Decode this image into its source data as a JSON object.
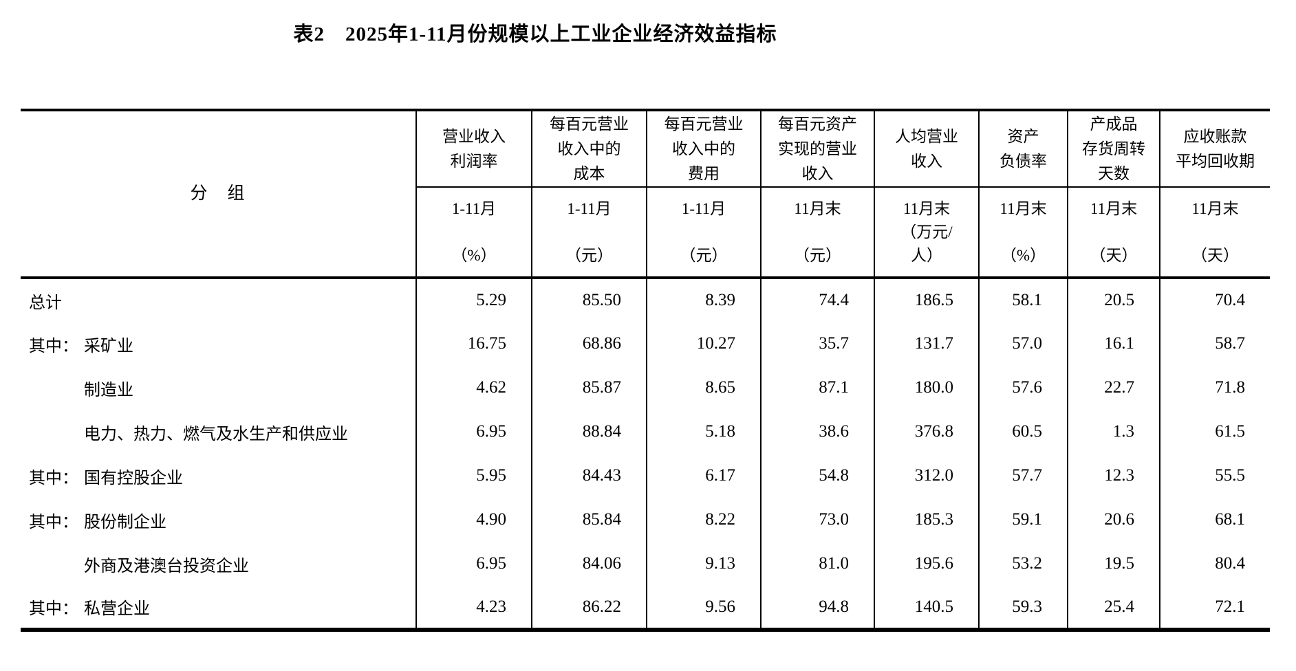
{
  "title": "表2　2025年1-11月份规模以上工业企业经济效益指标",
  "colors": {
    "text": "#000000",
    "background": "#ffffff",
    "border": "#000000"
  },
  "table": {
    "group_header": "分　组",
    "columns": [
      {
        "name": "营业收入\n利润率",
        "sub": "1-11月\n\n（%）"
      },
      {
        "name": "每百元营业\n收入中的\n成本",
        "sub": "1-11月\n\n（元）"
      },
      {
        "name": "每百元营业\n收入中的\n费用",
        "sub": "1-11月\n\n（元）"
      },
      {
        "name": "每百元资产\n实现的营业\n收入",
        "sub": "11月末\n\n（元）"
      },
      {
        "name": "人均营业\n收入",
        "sub": "11月末\n（万元/\n人）"
      },
      {
        "name": "资产\n负债率",
        "sub": "11月末\n\n（%）"
      },
      {
        "name": "产成品\n存货周转\n天数",
        "sub": "11月末\n\n（天）"
      },
      {
        "name": "应收账款\n平均回收期",
        "sub": "11月末\n\n（天）"
      }
    ],
    "rows": [
      {
        "prefix": "",
        "indent": false,
        "label": "总计",
        "values": [
          "5.29",
          "85.50",
          "8.39",
          "74.4",
          "186.5",
          "58.1",
          "20.5",
          "70.4"
        ]
      },
      {
        "prefix": "其中：",
        "indent": false,
        "label": "采矿业",
        "values": [
          "16.75",
          "68.86",
          "10.27",
          "35.7",
          "131.7",
          "57.0",
          "16.1",
          "58.7"
        ]
      },
      {
        "prefix": "",
        "indent": true,
        "label": "制造业",
        "values": [
          "4.62",
          "85.87",
          "8.65",
          "87.1",
          "180.0",
          "57.6",
          "22.7",
          "71.8"
        ]
      },
      {
        "prefix": "",
        "indent": true,
        "label": "电力、热力、燃气及水生产和供应业",
        "values": [
          "6.95",
          "88.84",
          "5.18",
          "38.6",
          "376.8",
          "60.5",
          "1.3",
          "61.5"
        ]
      },
      {
        "prefix": "其中：",
        "indent": false,
        "label": "国有控股企业",
        "values": [
          "5.95",
          "84.43",
          "6.17",
          "54.8",
          "312.0",
          "57.7",
          "12.3",
          "55.5"
        ]
      },
      {
        "prefix": "其中：",
        "indent": false,
        "label": "股份制企业",
        "values": [
          "4.90",
          "85.84",
          "8.22",
          "73.0",
          "185.3",
          "59.1",
          "20.6",
          "68.1"
        ]
      },
      {
        "prefix": "",
        "indent": true,
        "label": "外商及港澳台投资企业",
        "values": [
          "6.95",
          "84.06",
          "9.13",
          "81.0",
          "195.6",
          "53.2",
          "19.5",
          "80.4"
        ]
      },
      {
        "prefix": "其中：",
        "indent": false,
        "label": "私营企业",
        "values": [
          "4.23",
          "86.22",
          "9.56",
          "94.8",
          "140.5",
          "59.3",
          "25.4",
          "72.1"
        ]
      }
    ]
  }
}
